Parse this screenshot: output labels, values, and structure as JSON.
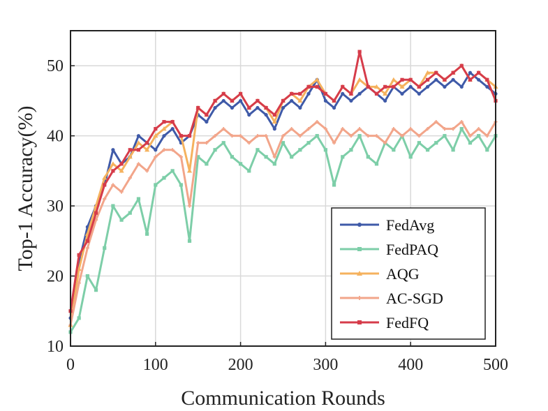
{
  "chart_data": {
    "type": "line",
    "title": "",
    "xlabel": "Communication Rounds",
    "ylabel": "Top-1 Accuracy(%)",
    "xlim": [
      0,
      500
    ],
    "ylim": [
      10,
      55
    ],
    "xticks": [
      "0",
      "100",
      "200",
      "300",
      "400",
      "500"
    ],
    "yticks": [
      "10",
      "20",
      "30",
      "40",
      "50"
    ],
    "grid": true,
    "legend_position": "bottom-right",
    "x": [
      0,
      10,
      20,
      30,
      40,
      50,
      60,
      70,
      80,
      90,
      100,
      110,
      120,
      130,
      140,
      150,
      160,
      170,
      180,
      190,
      200,
      210,
      220,
      230,
      240,
      250,
      260,
      270,
      280,
      290,
      300,
      310,
      320,
      330,
      340,
      350,
      360,
      370,
      380,
      390,
      400,
      410,
      420,
      430,
      440,
      450,
      460,
      470,
      480,
      490,
      500
    ],
    "series": [
      {
        "name": "FedAvg",
        "color": "#3f5aa8",
        "marker": "circle",
        "values": [
          14,
          22,
          27,
          30,
          33,
          38,
          36,
          37,
          40,
          39,
          38,
          40,
          41,
          39,
          40,
          43,
          42,
          44,
          45,
          44,
          45,
          43,
          44,
          43,
          41,
          44,
          45,
          44,
          46,
          48,
          45,
          44,
          46,
          45,
          46,
          47,
          46,
          45,
          47,
          46,
          47,
          46,
          47,
          48,
          47,
          48,
          47,
          49,
          48,
          47,
          46
        ]
      },
      {
        "name": "FedPAQ",
        "color": "#7dcea8",
        "marker": "square",
        "values": [
          12,
          14,
          20,
          18,
          24,
          30,
          28,
          29,
          31,
          26,
          33,
          34,
          35,
          33,
          25,
          37,
          36,
          38,
          39,
          37,
          36,
          35,
          38,
          37,
          36,
          39,
          37,
          38,
          39,
          40,
          38,
          33,
          37,
          38,
          40,
          37,
          36,
          39,
          38,
          40,
          37,
          39,
          38,
          39,
          40,
          38,
          41,
          39,
          40,
          38,
          40
        ]
      },
      {
        "name": "AQG",
        "color": "#f5b25e",
        "marker": "triangle",
        "values": [
          13,
          21,
          26,
          30,
          34,
          36,
          35,
          37,
          39,
          38,
          40,
          41,
          42,
          40,
          35,
          44,
          43,
          45,
          46,
          45,
          46,
          44,
          45,
          44,
          42,
          45,
          46,
          45,
          47,
          48,
          46,
          45,
          47,
          46,
          48,
          47,
          47,
          46,
          48,
          47,
          48,
          47,
          49,
          49,
          48,
          49,
          50,
          48,
          49,
          48,
          47
        ]
      },
      {
        "name": "AC-SGD",
        "color": "#f2a58a",
        "marker": "plus",
        "values": [
          13,
          19,
          24,
          28,
          31,
          33,
          32,
          34,
          36,
          35,
          37,
          38,
          38,
          37,
          30,
          39,
          39,
          40,
          41,
          40,
          40,
          39,
          40,
          40,
          37,
          40,
          41,
          40,
          41,
          42,
          41,
          39,
          41,
          40,
          41,
          40,
          40,
          39,
          41,
          40,
          41,
          40,
          41,
          42,
          41,
          41,
          42,
          40,
          41,
          40,
          42
        ]
      },
      {
        "name": "FedFQ",
        "color": "#d63c4a",
        "marker": "square",
        "values": [
          15,
          23,
          25,
          29,
          33,
          35,
          36,
          38,
          38,
          39,
          41,
          42,
          42,
          40,
          40,
          44,
          43,
          45,
          46,
          45,
          46,
          44,
          45,
          44,
          43,
          45,
          46,
          46,
          47,
          47,
          46,
          45,
          47,
          46,
          52,
          47,
          46,
          47,
          47,
          48,
          48,
          47,
          48,
          49,
          48,
          49,
          50,
          48,
          49,
          48,
          45
        ]
      }
    ]
  }
}
